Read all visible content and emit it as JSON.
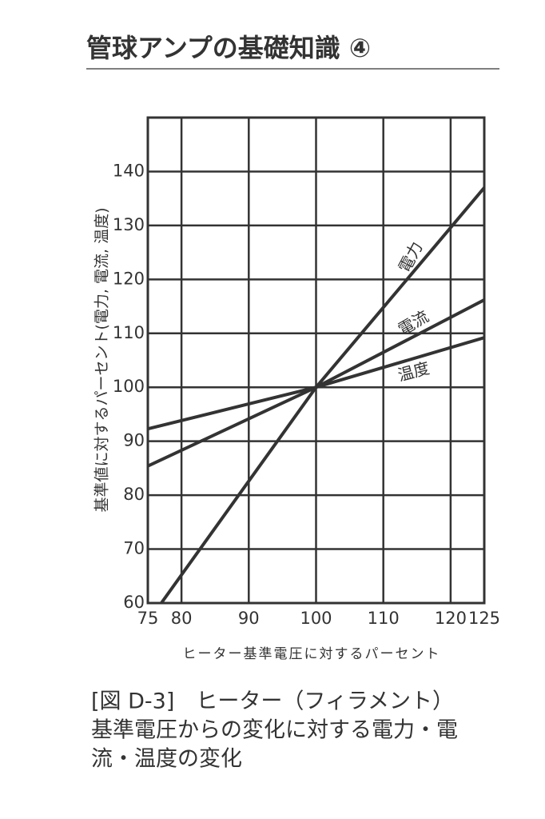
{
  "header": {
    "title": "管球アンプの基礎知識 ④"
  },
  "chart_data": {
    "type": "line",
    "xlabel": "ヒーター基準電圧に対するパーセント",
    "ylabel": "基準値に対するパーセント(電力, 電流, 温度)",
    "xlim": [
      75,
      125
    ],
    "ylim": [
      60,
      150
    ],
    "xticks": [
      75,
      80,
      90,
      100,
      110,
      120,
      125
    ],
    "yticks": [
      60,
      70,
      80,
      90,
      100,
      110,
      120,
      130,
      140
    ],
    "grid": true,
    "series": [
      {
        "name": "電力",
        "color": "#333333",
        "x": [
          77,
          100,
          125
        ],
        "values": [
          60,
          100,
          137
        ]
      },
      {
        "name": "電流",
        "color": "#333333",
        "x": [
          75,
          100,
          125
        ],
        "values": [
          85.4,
          100,
          116.2
        ]
      },
      {
        "name": "温度",
        "color": "#333333",
        "x": [
          75,
          100,
          125
        ],
        "values": [
          92.3,
          100,
          109.2
        ]
      }
    ]
  },
  "caption": {
    "lines": [
      "[図 D-3]　ヒーター（フィラメント）",
      "基準電圧からの変化に対する電力・電",
      "流・温度の変化"
    ]
  }
}
